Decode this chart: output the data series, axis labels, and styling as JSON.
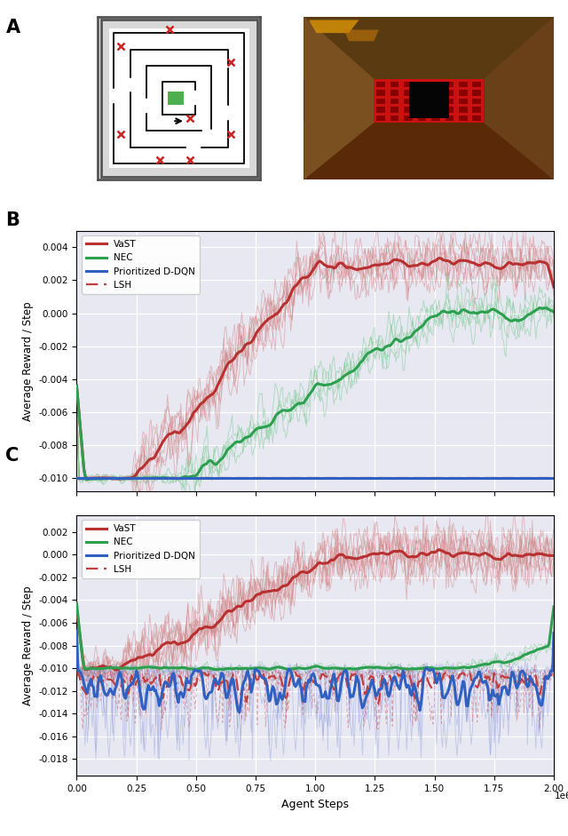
{
  "xlabel": "Agent Steps",
  "ylabel": "Average Reward / Step",
  "xlim": [
    0,
    2000000
  ],
  "xticks": [
    0,
    250000,
    500000,
    750000,
    1000000,
    1250000,
    1500000,
    1750000,
    2000000
  ],
  "xtick_labels": [
    "0.00",
    "0.25",
    "0.50",
    "0.75",
    "1.00",
    "1.25",
    "1.50",
    "1.75",
    "2.00"
  ],
  "xlabel_exp": "1e6",
  "B_ylim": [
    -0.0108,
    0.005
  ],
  "B_yticks": [
    -0.01,
    -0.008,
    -0.006,
    -0.004,
    -0.002,
    0.0,
    0.002,
    0.004
  ],
  "C_ylim": [
    -0.0195,
    0.0035
  ],
  "C_yticks": [
    -0.018,
    -0.016,
    -0.014,
    -0.012,
    -0.01,
    -0.008,
    -0.006,
    -0.004,
    -0.002,
    0.0,
    0.002
  ],
  "colors": {
    "VaST_mean": "#b83030",
    "VaST_thin": "#d08080",
    "NEC_mean": "#2da050",
    "NEC_thin": "#70c888",
    "DDQN_mean": "#3060c0",
    "DDQN_thin": "#8090d8",
    "LSH_mean": "#c04040"
  },
  "bg_color": "#e8e8f2",
  "grid_color": "white",
  "n_steps": 400
}
